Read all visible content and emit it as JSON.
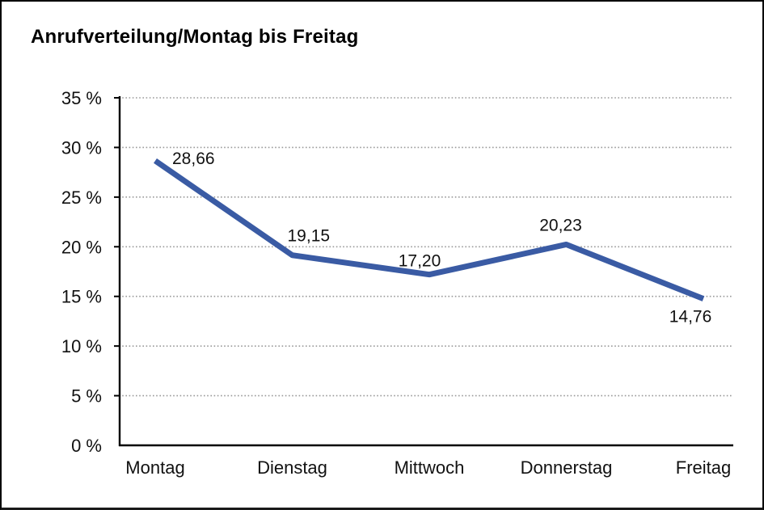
{
  "window": {
    "background": "#ffffff",
    "border_color": "#000000"
  },
  "chart_data": {
    "type": "line",
    "title": "Anrufverteilung/Montag bis Freitag",
    "categories": [
      "Montag",
      "Dienstag",
      "Mittwoch",
      "Donnerstag",
      "Freitag"
    ],
    "values": [
      28.66,
      19.15,
      17.2,
      20.23,
      14.76
    ],
    "value_labels": [
      "28,66",
      "19,15",
      "17,20",
      "20,23",
      "14,76"
    ],
    "xlabel": "",
    "ylabel": "",
    "ylim": [
      0,
      35
    ],
    "y_ticks": [
      0,
      5,
      10,
      15,
      20,
      25,
      30,
      35
    ],
    "y_tick_labels": [
      "0 %",
      "5 %",
      "10 %",
      "15 %",
      "20 %",
      "25 %",
      "30 %",
      "35 %"
    ],
    "grid": "horizontal-dotted",
    "legend": "none",
    "colors": {
      "line": "#3A5BA4",
      "axis": "#000000",
      "grid": "#999999",
      "text": "#111111"
    }
  }
}
